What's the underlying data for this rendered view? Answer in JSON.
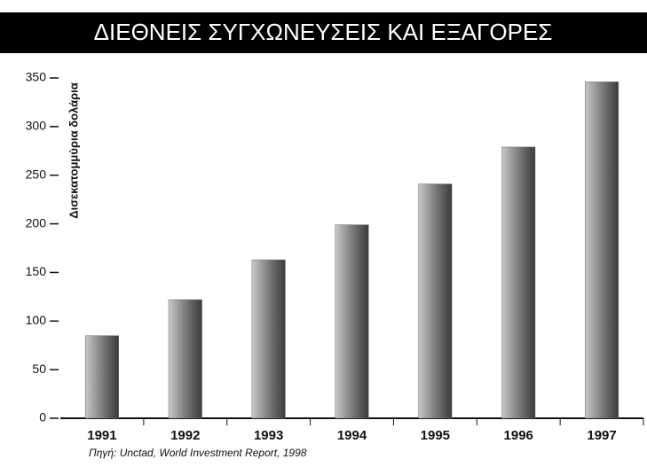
{
  "chart_data": {
    "type": "bar",
    "title": "ΔΙΕΘΝΕΙΣ ΣΥΓΧΩΝΕΥΣΕΙΣ ΚΑΙ ΕΞΑΓΟΡΕΣ",
    "y_label": "Δισεκατομμύρια δολάρια",
    "source": "Πηγή: Unctad, World Investment Report, 1998",
    "categories": [
      "1991",
      "1992",
      "1993",
      "1994",
      "1995",
      "1996",
      "1997"
    ],
    "values": [
      85,
      122,
      163,
      199,
      241,
      279,
      346
    ],
    "color": "#6e6e6e",
    "ylim": [
      0,
      350
    ],
    "yticks": [
      0,
      50,
      100,
      150,
      200,
      250,
      300,
      350
    ],
    "grid": false
  }
}
